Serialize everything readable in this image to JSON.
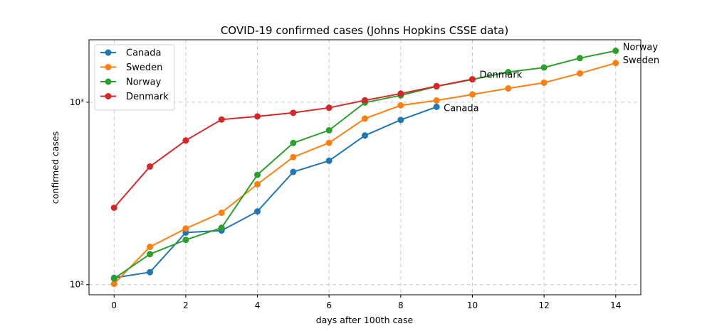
{
  "chart_data": {
    "type": "line",
    "title": "COVID-19 confirmed cases (Johns Hopkins CSSE data)",
    "xlabel": "days after 100th case",
    "ylabel": "confirmed cases",
    "xlim": [
      -0.7,
      14.7
    ],
    "ylim": [
      88,
      2200
    ],
    "yscale": "log",
    "grid": true,
    "legend": "top-left",
    "x_ticks": [
      0,
      2,
      4,
      6,
      8,
      10,
      12,
      14
    ],
    "y_ticks": [
      100,
      1000
    ],
    "y_tick_labels": [
      "10²",
      "10³"
    ],
    "series": [
      {
        "name": "Canada",
        "color": "#1f77b4",
        "x": [
          0,
          1,
          2,
          3,
          4,
          5,
          6,
          7,
          8,
          9
        ],
        "values": [
          109,
          117,
          193,
          198,
          252,
          415,
          478,
          657,
          800,
          943
        ],
        "end_label": "Canada"
      },
      {
        "name": "Sweden",
        "color": "#ff7f0e",
        "x": [
          0,
          1,
          2,
          3,
          4,
          5,
          6,
          7,
          8,
          9,
          10,
          11,
          12,
          13,
          14
        ],
        "values": [
          101,
          161,
          203,
          248,
          355,
          500,
          599,
          814,
          961,
          1022,
          1103,
          1190,
          1279,
          1439,
          1639
        ],
        "end_label": "Sweden"
      },
      {
        "name": "Norway",
        "color": "#2ca02c",
        "x": [
          0,
          1,
          2,
          3,
          4,
          5,
          6,
          7,
          8,
          9,
          10,
          11,
          12,
          13,
          14
        ],
        "values": [
          108,
          147,
          176,
          205,
          400,
          598,
          702,
          996,
          1090,
          1221,
          1333,
          1463,
          1550,
          1746,
          1914
        ],
        "end_label": "Norway"
      },
      {
        "name": "Denmark",
        "color": "#d62728",
        "x": [
          0,
          1,
          2,
          3,
          4,
          5,
          6,
          7,
          8,
          9,
          10
        ],
        "values": [
          264,
          444,
          617,
          804,
          836,
          875,
          933,
          1024,
          1115,
          1225,
          1337
        ],
        "end_label": "Denmark"
      }
    ]
  }
}
